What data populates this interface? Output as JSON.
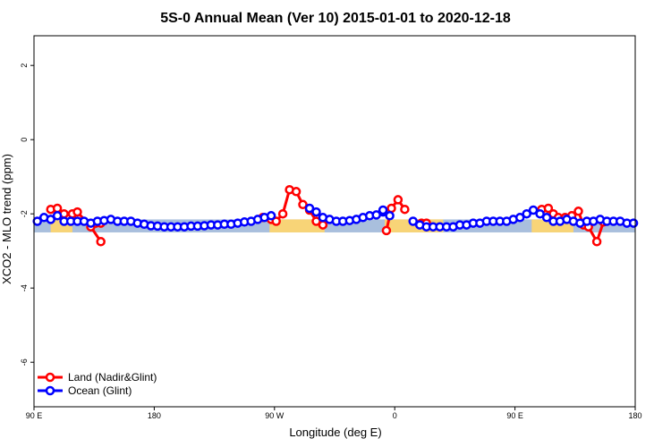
{
  "chart_data": {
    "type": "line",
    "title": "5S-0 Annual Mean (Ver 10)   2015-01-01 to 2020-12-18",
    "xlabel": "Longitude (deg E)",
    "ylabel": "XCO2 - MLO trend (ppm)",
    "xlim": [
      90,
      450
    ],
    "ylim": [
      -7.2,
      2.8
    ],
    "x_ticks": [
      90,
      162,
      234,
      306,
      378,
      450
    ],
    "x_tick_labels": [
      "90 E",
      "180",
      "90 W",
      "0",
      "90 E",
      "180"
    ],
    "y_ticks": [
      -6,
      -4,
      -2,
      0,
      2
    ],
    "y_tick_labels": [
      "-6",
      "-4",
      "-2",
      "0",
      "2"
    ],
    "band_ocean": [
      -2.5,
      -2.15
    ],
    "band_land_segments": [
      {
        "x": [
          100,
          113
        ],
        "y": [
          -2.5,
          -2.15
        ]
      },
      {
        "x": [
          231,
          264
        ],
        "y": [
          -2.5,
          -2.15
        ]
      },
      {
        "x": [
          300,
          335
        ],
        "y": [
          -2.5,
          -2.15
        ]
      },
      {
        "x": [
          388,
          413
        ],
        "y": [
          -2.5,
          -2.15
        ]
      }
    ],
    "legend_position": "bottom-left",
    "series": [
      {
        "name": "Land (Nadir&Glint)",
        "color": "#ff0000",
        "segments": [
          {
            "x": [
              100,
              104,
              108,
              113,
              116,
              124,
              130
            ],
            "y": [
              -1.88,
              -1.85,
              -2.0,
              -2.0,
              -1.95,
              -2.35,
              -2.75
            ]
          },
          {
            "x": [
              127,
              130
            ],
            "y": [
              -2.25,
              -2.25
            ]
          },
          {
            "x": [
              227,
              232,
              235,
              239,
              243,
              247,
              251,
              255,
              259,
              263
            ],
            "y": [
              -2.1,
              -2.15,
              -2.2,
              -2.0,
              -1.35,
              -1.4,
              -1.75,
              -1.9,
              -2.2,
              -2.3
            ]
          },
          {
            "x": [
              301,
              304,
              308,
              312
            ],
            "y": [
              -2.45,
              -1.85,
              -1.62,
              -1.88
            ]
          },
          {
            "x": [
              322,
              325
            ],
            "y": [
              -2.25,
              -2.25
            ]
          },
          {
            "x": [
              394,
              398,
              401,
              404,
              408,
              412,
              416,
              419,
              422,
              427,
              431
            ],
            "y": [
              -1.88,
              -1.85,
              -2.0,
              -2.1,
              -2.1,
              -2.05,
              -1.93,
              -2.3,
              -2.35,
              -2.75,
              -2.22
            ]
          }
        ]
      },
      {
        "name": "Ocean (Glint)",
        "color": "#0000ff",
        "segments": [
          {
            "x": [
              92,
              96,
              100,
              104,
              108,
              112,
              116,
              120,
              124,
              128,
              132,
              136,
              140,
              144,
              148,
              152,
              156,
              160,
              164,
              168,
              172,
              176,
              180,
              184,
              188,
              192,
              196,
              200,
              204,
              208,
              212,
              216,
              220,
              224,
              228,
              232
            ],
            "y": [
              -2.2,
              -2.1,
              -2.15,
              -2.05,
              -2.2,
              -2.2,
              -2.2,
              -2.2,
              -2.25,
              -2.2,
              -2.18,
              -2.15,
              -2.2,
              -2.2,
              -2.2,
              -2.25,
              -2.28,
              -2.32,
              -2.33,
              -2.35,
              -2.35,
              -2.35,
              -2.35,
              -2.33,
              -2.33,
              -2.32,
              -2.3,
              -2.3,
              -2.28,
              -2.28,
              -2.25,
              -2.22,
              -2.2,
              -2.15,
              -2.1,
              -2.05
            ]
          },
          {
            "x": [
              255,
              259,
              263,
              267,
              271,
              275,
              279,
              283,
              287,
              291,
              295,
              299
            ],
            "y": [
              -1.85,
              -1.95,
              -2.1,
              -2.15,
              -2.2,
              -2.2,
              -2.18,
              -2.15,
              -2.1,
              -2.05,
              -2.03,
              -1.95
            ]
          },
          {
            "x": [
              299,
              303
            ],
            "y": [
              -1.9,
              -2.05
            ]
          },
          {
            "x": [
              317,
              321,
              325,
              329,
              333,
              337,
              341,
              345,
              349,
              353,
              357,
              361,
              365,
              369,
              373,
              377,
              381,
              385,
              389,
              393,
              397,
              401,
              405,
              409,
              413,
              417,
              421,
              425,
              429,
              433,
              437,
              441,
              445,
              449
            ],
            "y": [
              -2.2,
              -2.3,
              -2.35,
              -2.35,
              -2.35,
              -2.35,
              -2.35,
              -2.3,
              -2.3,
              -2.25,
              -2.25,
              -2.2,
              -2.2,
              -2.2,
              -2.2,
              -2.15,
              -2.1,
              -2.0,
              -1.9,
              -2.0,
              -2.1,
              -2.2,
              -2.2,
              -2.15,
              -2.2,
              -2.25,
              -2.2,
              -2.2,
              -2.15,
              -2.2,
              -2.2,
              -2.2,
              -2.25,
              -2.25
            ]
          }
        ]
      }
    ]
  }
}
